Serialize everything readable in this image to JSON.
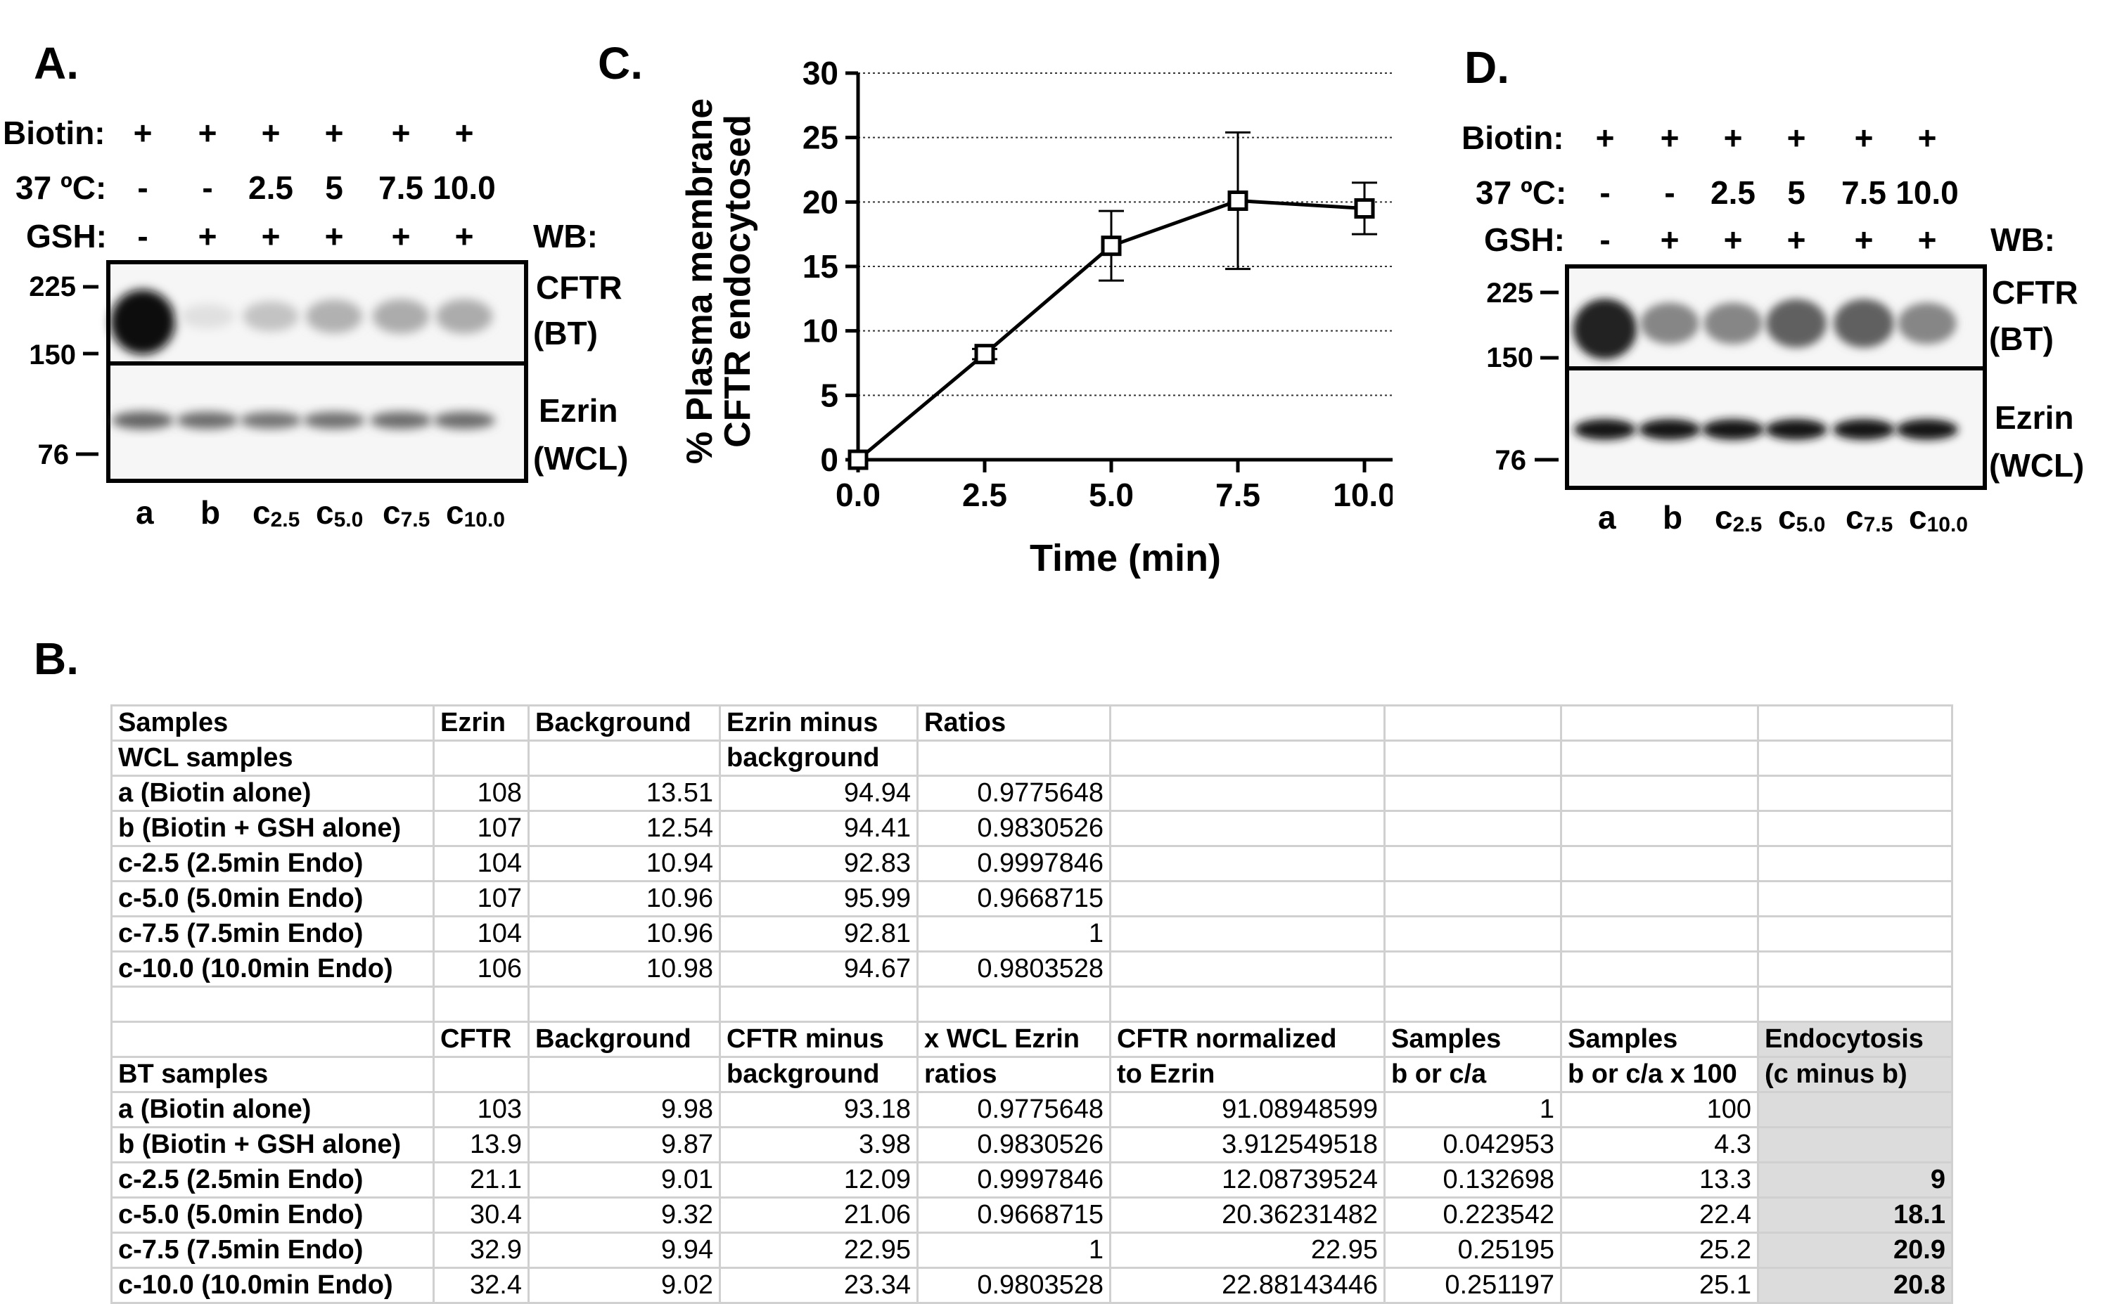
{
  "panel_a": {
    "title": "A.",
    "row_labels": [
      "Biotin:",
      "37 ºC:",
      "GSH:"
    ],
    "biotin": [
      "+",
      "+",
      "+",
      "+",
      "+",
      "+"
    ],
    "temp": [
      "-",
      "-",
      "2.5",
      "5",
      "7.5",
      "10.0"
    ],
    "gsh": [
      "-",
      "+",
      "+",
      "+",
      "+",
      "+"
    ],
    "wb": "WB:",
    "markers": [
      "225",
      "150",
      "76"
    ],
    "blot1_label": [
      "CFTR",
      "(BT)"
    ],
    "blot2_label": [
      "Ezrin",
      "(WCL)"
    ],
    "lanes": [
      "a",
      "b",
      "c",
      "c",
      "c",
      "c"
    ],
    "lane_subs": [
      "",
      "",
      "2.5",
      "5.0",
      "7.5",
      "10.0"
    ],
    "cftr_intensity": [
      1.0,
      0.05,
      0.18,
      0.26,
      0.28,
      0.28
    ],
    "ezrin_intensity": [
      0.6,
      0.55,
      0.5,
      0.52,
      0.55,
      0.55
    ]
  },
  "panel_c": {
    "title": "C.",
    "chart_data": {
      "type": "line",
      "x": [
        0.0,
        2.5,
        5.0,
        7.5,
        10.0
      ],
      "y": [
        0,
        8.2,
        16.6,
        20.1,
        19.5
      ],
      "error": [
        0,
        0.4,
        2.7,
        5.3,
        2.0
      ],
      "xlabel": "Time (min)",
      "ylabel": [
        "% Plasma membrane",
        "CFTR endocytosed"
      ],
      "x_ticks": [
        "0.0",
        "2.5",
        "5.0",
        "7.5",
        "10.0"
      ],
      "y_ticks": [
        "0",
        "5",
        "10",
        "15",
        "20",
        "25",
        "30"
      ],
      "xlim": [
        0,
        10
      ],
      "ylim": [
        0,
        30
      ],
      "grid": "horizontal dotted"
    }
  },
  "panel_d": {
    "title": "D.",
    "row_labels": [
      "Biotin:",
      "37 ºC:",
      "GSH:"
    ],
    "biotin": [
      "+",
      "+",
      "+",
      "+",
      "+",
      "+"
    ],
    "temp": [
      "-",
      "-",
      "2.5",
      "5",
      "7.5",
      "10.0"
    ],
    "gsh": [
      "-",
      "+",
      "+",
      "+",
      "+",
      "+"
    ],
    "wb": "WB:",
    "markers": [
      "225",
      "150",
      "76"
    ],
    "blot1_label": [
      "CFTR",
      "(BT)"
    ],
    "blot2_label": [
      "Ezrin",
      "(WCL)"
    ],
    "lanes": [
      "a",
      "b",
      "c",
      "c",
      "c",
      "c"
    ],
    "lane_subs": [
      "",
      "",
      "2.5",
      "5.0",
      "7.5",
      "10.0"
    ],
    "cftr_intensity": [
      0.9,
      0.45,
      0.45,
      0.62,
      0.62,
      0.45
    ],
    "ezrin_intensity": [
      0.95,
      0.95,
      0.95,
      0.95,
      0.95,
      0.95
    ]
  },
  "panel_b": {
    "title": "B.",
    "rows": [
      [
        {
          "t": "Samples",
          "c": "head"
        },
        {
          "t": "Ezrin",
          "c": "head"
        },
        {
          "t": "Background",
          "c": "head"
        },
        {
          "t": "Ezrin minus",
          "c": "head"
        },
        {
          "t": "Ratios",
          "c": "head"
        },
        {
          "t": "",
          "c": ""
        },
        {
          "t": "",
          "c": ""
        },
        {
          "t": "",
          "c": ""
        },
        {
          "t": "",
          "c": ""
        }
      ],
      [
        {
          "t": "WCL samples",
          "c": "head"
        },
        {
          "t": "",
          "c": ""
        },
        {
          "t": "",
          "c": ""
        },
        {
          "t": "background",
          "c": "head"
        },
        {
          "t": "",
          "c": ""
        },
        {
          "t": "",
          "c": ""
        },
        {
          "t": "",
          "c": ""
        },
        {
          "t": "",
          "c": ""
        },
        {
          "t": "",
          "c": ""
        }
      ],
      [
        {
          "t": "a (Biotin alone)",
          "c": "label"
        },
        {
          "t": "108",
          "c": "num"
        },
        {
          "t": "13.51",
          "c": "num"
        },
        {
          "t": "94.94",
          "c": "num"
        },
        {
          "t": "0.9775648",
          "c": "num"
        },
        {
          "t": "",
          "c": ""
        },
        {
          "t": "",
          "c": ""
        },
        {
          "t": "",
          "c": ""
        },
        {
          "t": "",
          "c": ""
        }
      ],
      [
        {
          "t": "b (Biotin + GSH alone)",
          "c": "label"
        },
        {
          "t": "107",
          "c": "num"
        },
        {
          "t": "12.54",
          "c": "num"
        },
        {
          "t": "94.41",
          "c": "num"
        },
        {
          "t": "0.9830526",
          "c": "num"
        },
        {
          "t": "",
          "c": ""
        },
        {
          "t": "",
          "c": ""
        },
        {
          "t": "",
          "c": ""
        },
        {
          "t": "",
          "c": ""
        }
      ],
      [
        {
          "t": "c-2.5 (2.5min Endo)",
          "c": "label"
        },
        {
          "t": "104",
          "c": "num"
        },
        {
          "t": "10.94",
          "c": "num"
        },
        {
          "t": "92.83",
          "c": "num"
        },
        {
          "t": "0.9997846",
          "c": "num"
        },
        {
          "t": "",
          "c": ""
        },
        {
          "t": "",
          "c": ""
        },
        {
          "t": "",
          "c": ""
        },
        {
          "t": "",
          "c": ""
        }
      ],
      [
        {
          "t": "c-5.0 (5.0min Endo)",
          "c": "label"
        },
        {
          "t": "107",
          "c": "num"
        },
        {
          "t": "10.96",
          "c": "num"
        },
        {
          "t": "95.99",
          "c": "num"
        },
        {
          "t": "0.9668715",
          "c": "num"
        },
        {
          "t": "",
          "c": ""
        },
        {
          "t": "",
          "c": ""
        },
        {
          "t": "",
          "c": ""
        },
        {
          "t": "",
          "c": ""
        }
      ],
      [
        {
          "t": "c-7.5 (7.5min Endo)",
          "c": "label"
        },
        {
          "t": "104",
          "c": "num"
        },
        {
          "t": "10.96",
          "c": "num"
        },
        {
          "t": "92.81",
          "c": "num"
        },
        {
          "t": "1",
          "c": "num"
        },
        {
          "t": "",
          "c": ""
        },
        {
          "t": "",
          "c": ""
        },
        {
          "t": "",
          "c": ""
        },
        {
          "t": "",
          "c": ""
        }
      ],
      [
        {
          "t": "c-10.0 (10.0min Endo)",
          "c": "label"
        },
        {
          "t": "106",
          "c": "num"
        },
        {
          "t": "10.98",
          "c": "num"
        },
        {
          "t": "94.67",
          "c": "num"
        },
        {
          "t": "0.9803528",
          "c": "num"
        },
        {
          "t": "",
          "c": ""
        },
        {
          "t": "",
          "c": ""
        },
        {
          "t": "",
          "c": ""
        },
        {
          "t": "",
          "c": ""
        }
      ],
      [
        {
          "t": "",
          "c": ""
        },
        {
          "t": "",
          "c": ""
        },
        {
          "t": "",
          "c": ""
        },
        {
          "t": "",
          "c": ""
        },
        {
          "t": "",
          "c": ""
        },
        {
          "t": "",
          "c": ""
        },
        {
          "t": "",
          "c": ""
        },
        {
          "t": "",
          "c": ""
        },
        {
          "t": "",
          "c": ""
        }
      ],
      [
        {
          "t": "",
          "c": ""
        },
        {
          "t": "CFTR",
          "c": "head"
        },
        {
          "t": "Background",
          "c": "head"
        },
        {
          "t": "CFTR minus",
          "c": "head"
        },
        {
          "t": "x WCL Ezrin",
          "c": "head"
        },
        {
          "t": " CFTR  normalized",
          "c": "head"
        },
        {
          "t": "Samples",
          "c": "head"
        },
        {
          "t": "Samples",
          "c": "head"
        },
        {
          "t": "Endocytosis",
          "c": "endo-head"
        }
      ],
      [
        {
          "t": "BT samples",
          "c": "head"
        },
        {
          "t": "",
          "c": ""
        },
        {
          "t": "",
          "c": ""
        },
        {
          "t": "background",
          "c": "head"
        },
        {
          "t": "ratios",
          "c": "head"
        },
        {
          "t": "to Ezrin",
          "c": "head"
        },
        {
          "t": "b or c/a",
          "c": "head"
        },
        {
          "t": "b or c/a x 100",
          "c": "head"
        },
        {
          "t": "(c minus b)",
          "c": "endo-head"
        }
      ],
      [
        {
          "t": "a (Biotin alone)",
          "c": "label"
        },
        {
          "t": "103",
          "c": "num"
        },
        {
          "t": "9.98",
          "c": "num"
        },
        {
          "t": "93.18",
          "c": "num"
        },
        {
          "t": "0.9775648",
          "c": "num"
        },
        {
          "t": "91.08948599",
          "c": "num"
        },
        {
          "t": "1",
          "c": "num"
        },
        {
          "t": "100",
          "c": "num"
        },
        {
          "t": "",
          "c": "endo"
        }
      ],
      [
        {
          "t": "b (Biotin + GSH alone)",
          "c": "label"
        },
        {
          "t": "13.9",
          "c": "num"
        },
        {
          "t": "9.87",
          "c": "num"
        },
        {
          "t": "3.98",
          "c": "num"
        },
        {
          "t": "0.9830526",
          "c": "num"
        },
        {
          "t": "3.912549518",
          "c": "num"
        },
        {
          "t": "0.042953",
          "c": "num"
        },
        {
          "t": "4.3",
          "c": "num"
        },
        {
          "t": "",
          "c": "endo"
        }
      ],
      [
        {
          "t": "c-2.5 (2.5min Endo)",
          "c": "label"
        },
        {
          "t": "21.1",
          "c": "num"
        },
        {
          "t": "9.01",
          "c": "num"
        },
        {
          "t": "12.09",
          "c": "num"
        },
        {
          "t": "0.9997846",
          "c": "num"
        },
        {
          "t": "12.08739524",
          "c": "num"
        },
        {
          "t": "0.132698",
          "c": "num"
        },
        {
          "t": "13.3",
          "c": "num"
        },
        {
          "t": "9",
          "c": "endo"
        }
      ],
      [
        {
          "t": "c-5.0 (5.0min Endo)",
          "c": "label"
        },
        {
          "t": "30.4",
          "c": "num"
        },
        {
          "t": "9.32",
          "c": "num"
        },
        {
          "t": "21.06",
          "c": "num"
        },
        {
          "t": "0.9668715",
          "c": "num"
        },
        {
          "t": "20.36231482",
          "c": "num"
        },
        {
          "t": "0.223542",
          "c": "num"
        },
        {
          "t": "22.4",
          "c": "num"
        },
        {
          "t": "18.1",
          "c": "endo"
        }
      ],
      [
        {
          "t": "c-7.5 (7.5min Endo)",
          "c": "label"
        },
        {
          "t": "32.9",
          "c": "num"
        },
        {
          "t": "9.94",
          "c": "num"
        },
        {
          "t": "22.95",
          "c": "num"
        },
        {
          "t": "1",
          "c": "num"
        },
        {
          "t": "22.95",
          "c": "num"
        },
        {
          "t": "0.25195",
          "c": "num"
        },
        {
          "t": "25.2",
          "c": "num"
        },
        {
          "t": "20.9",
          "c": "endo"
        }
      ],
      [
        {
          "t": "c-10.0 (10.0min Endo)",
          "c": "label"
        },
        {
          "t": "32.4",
          "c": "num"
        },
        {
          "t": "9.02",
          "c": "num"
        },
        {
          "t": "23.34",
          "c": "num"
        },
        {
          "t": "0.9803528",
          "c": "num"
        },
        {
          "t": "22.88143446",
          "c": "num"
        },
        {
          "t": "0.251197",
          "c": "num"
        },
        {
          "t": "25.1",
          "c": "num"
        },
        {
          "t": "20.8",
          "c": "endo"
        }
      ]
    ]
  }
}
